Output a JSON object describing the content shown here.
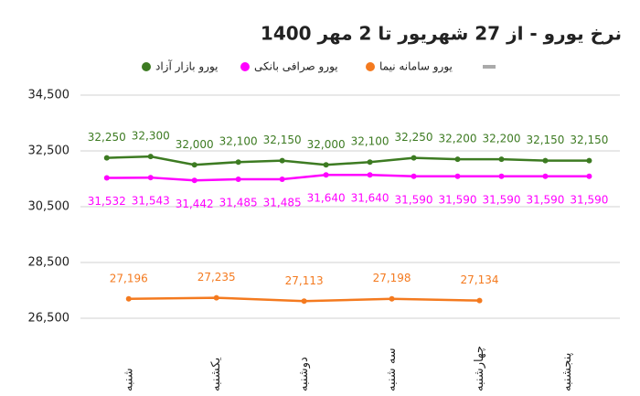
{
  "chart_data": {
    "type": "line",
    "title": "نرخ یورو - از 27 شهریور تا 2 مهر 1400",
    "xlim": [
      -0.6,
      11.7
    ],
    "xticks": [
      {
        "value": 0.5,
        "label": "شنبه"
      },
      {
        "value": 2.5,
        "label": "یکشنبه"
      },
      {
        "value": 4.5,
        "label": "دوشنبه"
      },
      {
        "value": 6.5,
        "label": "سه شنبه"
      },
      {
        "value": 8.5,
        "label": "چهارشنبه"
      },
      {
        "value": 10.5,
        "label": "پنجشنبه"
      }
    ],
    "ylim": [
      26500,
      34500
    ],
    "yticks": [
      {
        "value": 26500,
        "label": "26,500"
      },
      {
        "value": 28500,
        "label": "28,500"
      },
      {
        "value": 30500,
        "label": "30,500"
      },
      {
        "value": 32500,
        "label": "32,500"
      },
      {
        "value": 34500,
        "label": "34,500"
      }
    ],
    "grid": true,
    "series": [
      {
        "name": "یورو بازار آزاد",
        "color": "#3d7b22",
        "label_position": "above",
        "x": [
          0,
          1,
          2,
          3,
          4,
          5,
          6,
          7,
          8,
          9,
          10,
          11
        ],
        "values": [
          32250,
          32300,
          32000,
          32100,
          32150,
          32000,
          32100,
          32250,
          32200,
          32200,
          32150,
          32150
        ],
        "value_labels": [
          "32,250",
          "32,300",
          "32,000",
          "32,100",
          "32,150",
          "32,000",
          "32,100",
          "32,250",
          "32,200",
          "32,200",
          "32,150",
          "32,150"
        ]
      },
      {
        "name": "یورو صرافی بانکی",
        "color": "#ff00ff",
        "label_position": "below",
        "x": [
          0,
          1,
          2,
          3,
          4,
          5,
          6,
          7,
          8,
          9,
          10,
          11
        ],
        "values": [
          31532,
          31543,
          31442,
          31485,
          31485,
          31640,
          31640,
          31590,
          31590,
          31590,
          31590,
          31590
        ],
        "value_labels": [
          "31,532",
          "31,543",
          "31,442",
          "31,485",
          "31,485",
          "31,640",
          "31,640",
          "31,590",
          "31,590",
          "31,590",
          "31,590",
          "31,590"
        ]
      },
      {
        "name": "یورو سامانه نیما",
        "color": "#f47a1f",
        "label_position": "above",
        "x": [
          0.5,
          2.5,
          4.5,
          6.5,
          8.5
        ],
        "values": [
          27196,
          27235,
          27113,
          27198,
          27134
        ],
        "value_labels": [
          "27,196",
          "27,235",
          "27,113",
          "27,198",
          "27,134"
        ]
      }
    ]
  }
}
